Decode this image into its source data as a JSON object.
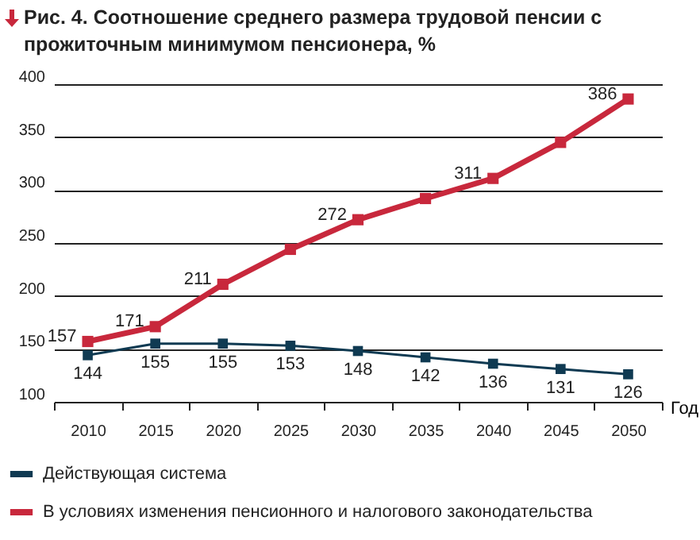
{
  "chart_data": {
    "type": "line",
    "title": "Рис. 4. Соотношение среднего размера трудовой пенсии с прожиточным минимумом пенсионера, %",
    "xlabel": "Год",
    "categories": [
      "2010",
      "2015",
      "2020",
      "2025",
      "2030",
      "2035",
      "2040",
      "2045",
      "2050"
    ],
    "series": [
      {
        "name": "Действующая система",
        "color": "#0f3a52",
        "values": [
          144,
          155,
          155,
          153,
          148,
          142,
          136,
          131,
          126
        ],
        "value_labels": [
          "144",
          "155",
          "155",
          "153",
          "148",
          "142",
          "136",
          "131",
          "126"
        ]
      },
      {
        "name": "В условиях изменения пенсионного и налогового законодательства",
        "color": "#c8283c",
        "values": [
          157,
          171,
          211,
          244,
          272,
          292,
          311,
          345,
          386
        ],
        "value_labels": [
          "157",
          "171",
          "211",
          null,
          "272",
          null,
          "311",
          null,
          "386"
        ]
      }
    ],
    "ylim": [
      100,
      400
    ],
    "yticks": [
      100,
      150,
      200,
      250,
      300,
      350,
      400
    ],
    "grid": "y",
    "legend": "bottom left",
    "marker": "square",
    "line_style": "solid"
  }
}
